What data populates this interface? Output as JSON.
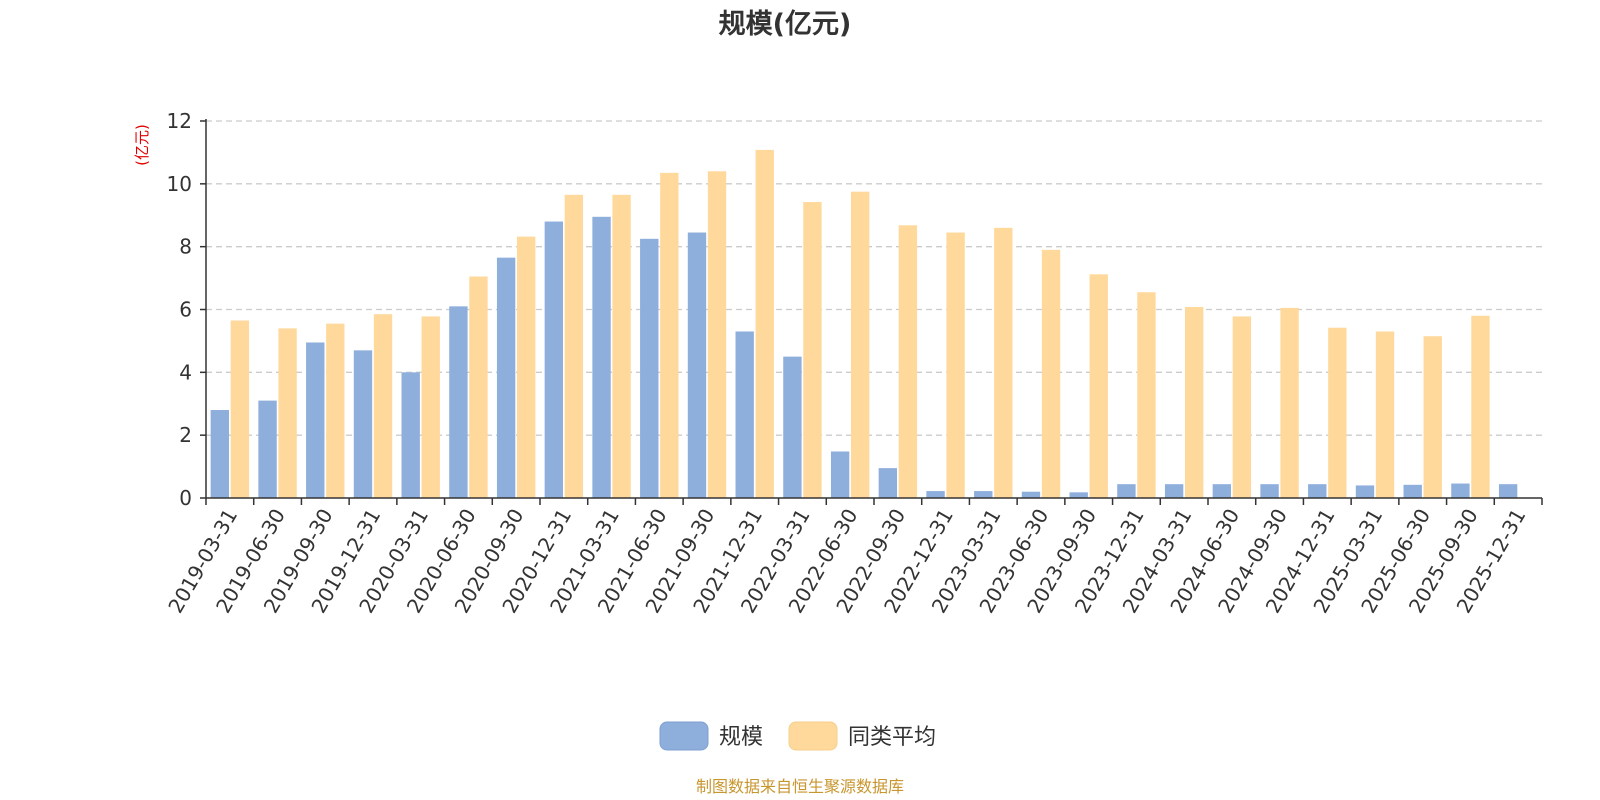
{
  "chart_data": {
    "type": "bar",
    "title": "规模(亿元)",
    "ylabel": "(亿元)",
    "ylim": [
      0,
      12
    ],
    "yticks": [
      0,
      2,
      4,
      6,
      8,
      10,
      12
    ],
    "grid": true,
    "legend_position": "bottom-center",
    "categories": [
      "2019-03-31",
      "2019-06-30",
      "2019-09-30",
      "2019-12-31",
      "2020-03-31",
      "2020-06-30",
      "2020-09-30",
      "2020-12-31",
      "2021-03-31",
      "2021-06-30",
      "2021-09-30",
      "2021-12-31",
      "2022-03-31",
      "2022-06-30",
      "2022-09-30",
      "2022-12-31",
      "2023-03-31",
      "2023-06-30",
      "2023-09-30",
      "2023-12-31",
      "2024-03-31",
      "2024-06-30",
      "2024-09-30",
      "2024-12-31",
      "2025-03-31",
      "2025-06-30",
      "2025-09-30",
      "2025-12-31"
    ],
    "series": [
      {
        "name": "规模",
        "color": "#8eaedc",
        "values": [
          2.8,
          3.1,
          4.95,
          4.7,
          4.0,
          6.1,
          7.65,
          8.8,
          8.95,
          8.25,
          8.45,
          5.3,
          4.5,
          1.48,
          0.95,
          0.22,
          0.22,
          0.2,
          0.18,
          0.44,
          0.44,
          0.44,
          0.44,
          0.44,
          0.4,
          0.42,
          0.46,
          0.44
        ]
      },
      {
        "name": "同类平均",
        "color": "#ffd99c",
        "values": [
          5.65,
          5.4,
          5.55,
          5.85,
          5.78,
          7.05,
          8.32,
          9.65,
          9.65,
          10.35,
          10.4,
          11.08,
          9.42,
          9.75,
          8.68,
          8.45,
          8.6,
          7.9,
          7.12,
          6.55,
          6.08,
          5.78,
          6.05,
          5.42,
          5.3,
          5.15,
          5.8,
          null
        ]
      }
    ]
  },
  "footer": {
    "source": "制图数据来自恒生聚源数据库"
  }
}
